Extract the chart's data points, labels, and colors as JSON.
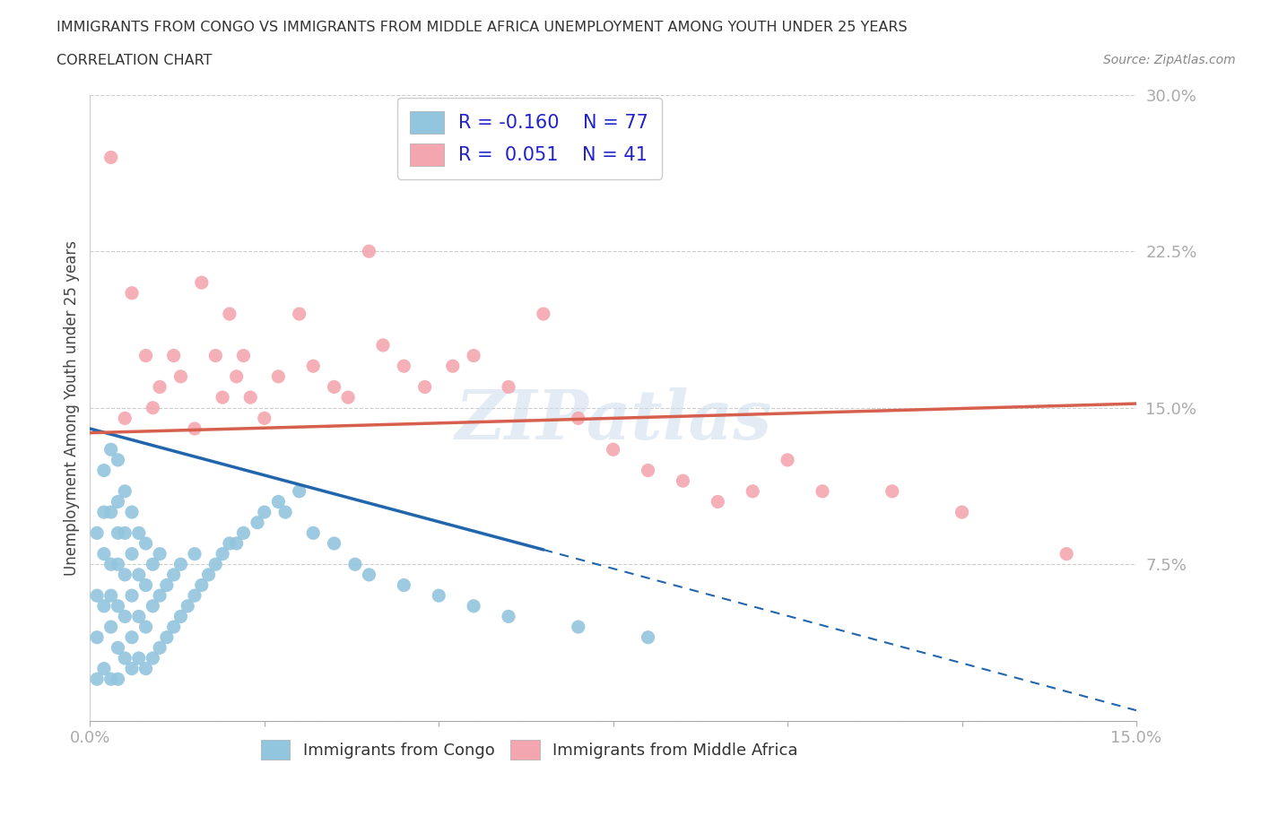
{
  "title_line1": "IMMIGRANTS FROM CONGO VS IMMIGRANTS FROM MIDDLE AFRICA UNEMPLOYMENT AMONG YOUTH UNDER 25 YEARS",
  "title_line2": "CORRELATION CHART",
  "source": "Source: ZipAtlas.com",
  "ylabel": "Unemployment Among Youth under 25 years",
  "xlim": [
    0.0,
    0.15
  ],
  "ylim": [
    0.0,
    0.3
  ],
  "congo_color": "#92c5de",
  "congo_line_color": "#2166ac",
  "middle_africa_color": "#f4a6b0",
  "middle_africa_line_color": "#d6604d",
  "congo_R": -0.16,
  "congo_N": 77,
  "middle_africa_R": 0.051,
  "middle_africa_N": 41,
  "legend_R_color": "#2222cc",
  "watermark": "ZIPatlas",
  "congo_scatter_x": [
    0.001,
    0.001,
    0.001,
    0.001,
    0.002,
    0.002,
    0.002,
    0.002,
    0.002,
    0.003,
    0.003,
    0.003,
    0.003,
    0.003,
    0.003,
    0.004,
    0.004,
    0.004,
    0.004,
    0.004,
    0.004,
    0.004,
    0.005,
    0.005,
    0.005,
    0.005,
    0.005,
    0.006,
    0.006,
    0.006,
    0.006,
    0.006,
    0.007,
    0.007,
    0.007,
    0.007,
    0.008,
    0.008,
    0.008,
    0.008,
    0.009,
    0.009,
    0.009,
    0.01,
    0.01,
    0.01,
    0.011,
    0.011,
    0.012,
    0.012,
    0.013,
    0.013,
    0.014,
    0.015,
    0.015,
    0.016,
    0.017,
    0.018,
    0.019,
    0.02,
    0.021,
    0.022,
    0.024,
    0.025,
    0.027,
    0.028,
    0.03,
    0.032,
    0.035,
    0.038,
    0.04,
    0.045,
    0.05,
    0.055,
    0.06,
    0.07,
    0.08
  ],
  "congo_scatter_y": [
    0.02,
    0.04,
    0.06,
    0.09,
    0.025,
    0.055,
    0.08,
    0.1,
    0.12,
    0.02,
    0.045,
    0.06,
    0.075,
    0.1,
    0.13,
    0.02,
    0.035,
    0.055,
    0.075,
    0.09,
    0.105,
    0.125,
    0.03,
    0.05,
    0.07,
    0.09,
    0.11,
    0.025,
    0.04,
    0.06,
    0.08,
    0.1,
    0.03,
    0.05,
    0.07,
    0.09,
    0.025,
    0.045,
    0.065,
    0.085,
    0.03,
    0.055,
    0.075,
    0.035,
    0.06,
    0.08,
    0.04,
    0.065,
    0.045,
    0.07,
    0.05,
    0.075,
    0.055,
    0.06,
    0.08,
    0.065,
    0.07,
    0.075,
    0.08,
    0.085,
    0.085,
    0.09,
    0.095,
    0.1,
    0.105,
    0.1,
    0.11,
    0.09,
    0.085,
    0.075,
    0.07,
    0.065,
    0.06,
    0.055,
    0.05,
    0.045,
    0.04
  ],
  "middle_africa_scatter_x": [
    0.003,
    0.005,
    0.006,
    0.008,
    0.009,
    0.01,
    0.012,
    0.013,
    0.015,
    0.016,
    0.018,
    0.019,
    0.02,
    0.021,
    0.022,
    0.023,
    0.025,
    0.027,
    0.03,
    0.032,
    0.035,
    0.037,
    0.04,
    0.042,
    0.045,
    0.048,
    0.052,
    0.055,
    0.06,
    0.065,
    0.07,
    0.075,
    0.08,
    0.085,
    0.09,
    0.095,
    0.1,
    0.105,
    0.115,
    0.125,
    0.14
  ],
  "middle_africa_scatter_y": [
    0.27,
    0.145,
    0.205,
    0.175,
    0.15,
    0.16,
    0.175,
    0.165,
    0.14,
    0.21,
    0.175,
    0.155,
    0.195,
    0.165,
    0.175,
    0.155,
    0.145,
    0.165,
    0.195,
    0.17,
    0.16,
    0.155,
    0.225,
    0.18,
    0.17,
    0.16,
    0.17,
    0.175,
    0.16,
    0.195,
    0.145,
    0.13,
    0.12,
    0.115,
    0.105,
    0.11,
    0.125,
    0.11,
    0.11,
    0.1,
    0.08
  ],
  "congo_trend_x0": 0.0,
  "congo_trend_y0": 0.14,
  "congo_trend_x1": 0.065,
  "congo_trend_y1": 0.082,
  "congo_trend_x2": 0.15,
  "congo_trend_y2": 0.005,
  "middle_africa_trend_x0": 0.0,
  "middle_africa_trend_y0": 0.138,
  "middle_africa_trend_x1": 0.15,
  "middle_africa_trend_y1": 0.152
}
